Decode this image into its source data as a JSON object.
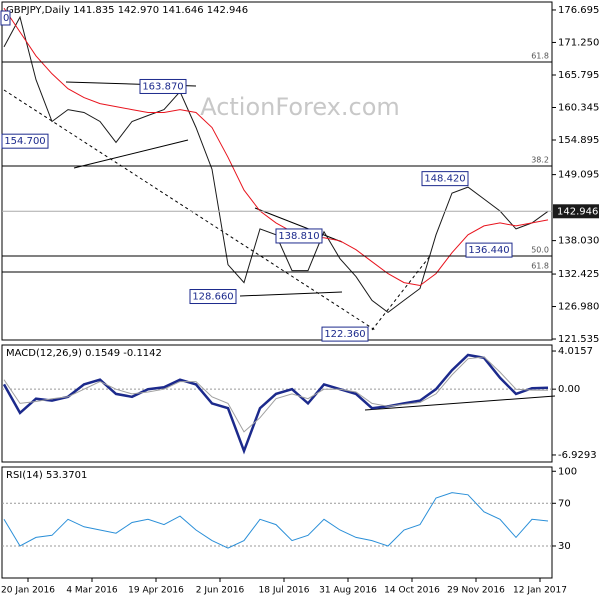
{
  "chart_data": [
    {
      "type": "line",
      "title": "GBPJPY,Daily  141.835 142.970 141.646 142.946",
      "watermark": "ActionForex.com",
      "xticks": [
        "20 Jan 2016",
        "4 Mar 2016",
        "19 Apr 2016",
        "2 Jun 2016",
        "18 Jul 2016",
        "31 Aug 2016",
        "14 Oct 2016",
        "29 Nov 2016",
        "12 Jan 2017"
      ],
      "ylim": [
        121.37,
        178.03
      ],
      "yticks": [
        176.695,
        {
          "value": 171.25,
          "label": "171.250"
        },
        165.795,
        160.345,
        154.895,
        149.095,
        {
          "value": 138.03,
          "label": "138.030"
        },
        132.425,
        {
          "value": 126.98,
          "label": "126.980"
        },
        121.535
      ],
      "series": [
        {
          "name": "Close",
          "color": "#1a1a1a",
          "values": [
            170.5,
            175.5,
            165,
            158,
            160,
            159.5,
            158,
            154.5,
            158,
            159,
            160,
            163,
            157,
            150,
            134,
            131,
            140,
            139,
            133,
            133,
            139.5,
            135,
            132,
            128,
            126,
            128,
            130,
            139,
            146,
            147,
            145,
            143,
            140,
            141,
            142.946
          ]
        },
        {
          "name": "MA",
          "color": "#e8141e",
          "values": [
            177,
            173,
            169,
            166,
            163.5,
            162,
            161,
            160.5,
            160,
            159.5,
            159.5,
            160,
            159.5,
            157,
            152,
            146.5,
            143,
            141,
            139.5,
            138.5,
            138.5,
            138,
            136.5,
            134.5,
            132.5,
            131,
            130.5,
            132.5,
            136,
            139,
            140.5,
            141,
            140.5,
            141,
            141.5
          ]
        }
      ],
      "clipped_label": "0",
      "annotations": [
        {
          "value": 163.87,
          "label": "163.870"
        },
        {
          "value": 154.7,
          "label": "154.700"
        },
        {
          "value": 148.42,
          "label": "148.420"
        },
        {
          "value": 138.81,
          "label": "138.810"
        },
        {
          "value": 136.44,
          "label": "136.440"
        },
        {
          "value": 128.66,
          "label": "128.660"
        },
        {
          "value": 122.36,
          "label": "122.360"
        }
      ],
      "fib_levels": [
        {
          "label": "61.8",
          "price": 167.97
        },
        {
          "label": "38.2",
          "price": 150.54
        },
        {
          "label": "50.0",
          "price": 135.45
        },
        {
          "label": "61.8",
          "price": 132.77
        }
      ]
    },
    {
      "type": "line",
      "title": "MACD(12,26,9) 0.1549 -0.1142",
      "ylim": [
        -7.67,
        4.65
      ],
      "yticks": [
        4.0157,
        {
          "value": 0,
          "label": "0.00"
        },
        -6.9293
      ],
      "series": [
        {
          "name": "MACD",
          "color": "#1c2a8c",
          "values": [
            0.5,
            -2.5,
            -1,
            -1.2,
            -0.8,
            0.5,
            1,
            -0.5,
            -0.8,
            0,
            0.2,
            1,
            0.5,
            -1.5,
            -2,
            -6.5,
            -2,
            -0.5,
            0,
            -1.5,
            0.5,
            0,
            -0.5,
            -2,
            -1.8,
            -1.5,
            -1.2,
            0,
            2,
            3.6,
            3.3,
            1.2,
            -0.5,
            0.1,
            0.1549
          ]
        },
        {
          "name": "Signal",
          "color": "#a0a0a0",
          "values": [
            1,
            -1.5,
            -1.3,
            -1,
            -0.8,
            0,
            0.8,
            0,
            -0.5,
            -0.3,
            0,
            0.8,
            0.8,
            -0.8,
            -1.5,
            -4.5,
            -3,
            -1,
            -0.5,
            -1,
            0,
            0,
            -0.3,
            -1.5,
            -1.8,
            -1.6,
            -1.4,
            -0.5,
            1.5,
            3.2,
            3.4,
            1.8,
            0,
            -0.1,
            -0.1142
          ]
        }
      ]
    },
    {
      "type": "line",
      "title": "RSI(14) 53.3701",
      "ylim": [
        0,
        104
      ],
      "yticks": [
        100,
        70,
        30
      ],
      "series": [
        {
          "name": "RSI",
          "color": "#2a8fd8",
          "values": [
            55,
            30,
            38,
            40,
            55,
            48,
            45,
            42,
            52,
            55,
            50,
            58,
            45,
            35,
            28,
            35,
            55,
            50,
            35,
            40,
            55,
            45,
            38,
            35,
            30,
            45,
            50,
            75,
            80,
            78,
            62,
            55,
            38,
            55,
            53.3701
          ]
        }
      ]
    }
  ]
}
